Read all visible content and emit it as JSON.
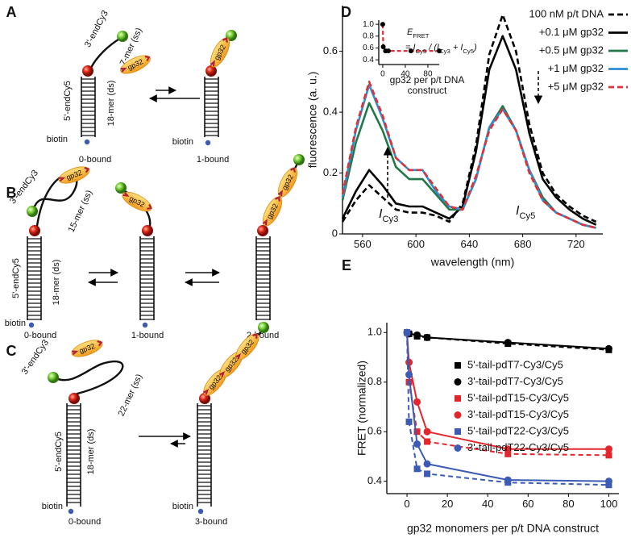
{
  "diagram_a": {
    "letter": "A",
    "cy3": "3'-endCy3",
    "ss": "7-mer (ss)",
    "cy5": "5'-endCy5",
    "ds": "18-mer (ds)",
    "biotin": [
      "biotin",
      "biotin"
    ],
    "states": [
      "0-bound",
      "1-bound"
    ],
    "gp32": [
      "gp32",
      "gp32"
    ]
  },
  "diagram_b": {
    "letter": "B",
    "cy3": "3'-endCy3",
    "ss": "15-mer (ss)",
    "cy5": "5'-endCy5",
    "ds": "18-mer (ds)",
    "biotin": [
      "biotin"
    ],
    "states": [
      "0-bound",
      "1-bound",
      "2-bound"
    ],
    "gp32": [
      "gp32",
      "gp32",
      "gp32",
      "gp32"
    ]
  },
  "diagram_c": {
    "letter": "C",
    "cy3": "3'-endCy3",
    "ss": "22-mer (ss)",
    "cy5": "5'-endCy5",
    "ds": "18-mer (ds)",
    "biotin": [
      "biotin",
      "biotin"
    ],
    "states": [
      "0-bound",
      "3-bound"
    ],
    "gp32": [
      "gp32",
      "gp32",
      "gp32",
      "gp32"
    ]
  },
  "chart_data": [
    {
      "type": "line",
      "panel": "D",
      "xlabel": "wavelength (nm)",
      "ylabel": "fluorescence (a. u.)",
      "annotations": [
        [
          "I",
          "Cy3"
        ],
        [
          "I",
          "Cy5"
        ]
      ],
      "x": [
        545,
        555,
        565,
        575,
        585,
        595,
        605,
        615,
        625,
        635,
        645,
        655,
        665,
        675,
        685,
        695,
        705,
        715,
        725,
        735
      ],
      "xlim": [
        545,
        740
      ],
      "xticks": [
        560,
        600,
        640,
        680,
        720
      ],
      "ylim": [
        0,
        0.75
      ],
      "yticks": [
        0,
        0.2,
        0.4,
        0.6
      ],
      "series": [
        {
          "name": "100 nM p/t DNA",
          "color": "#000000",
          "dashed": true,
          "values": [
            0.04,
            0.11,
            0.16,
            0.12,
            0.08,
            0.07,
            0.07,
            0.06,
            0.04,
            0.1,
            0.29,
            0.59,
            0.72,
            0.6,
            0.36,
            0.2,
            0.13,
            0.09,
            0.06,
            0.04
          ]
        },
        {
          "name": "+0.1 μM gp32",
          "color": "#000000",
          "dashed": false,
          "values": [
            0.05,
            0.14,
            0.21,
            0.16,
            0.1,
            0.09,
            0.09,
            0.07,
            0.05,
            0.09,
            0.27,
            0.54,
            0.65,
            0.54,
            0.33,
            0.18,
            0.12,
            0.08,
            0.05,
            0.03
          ]
        },
        {
          "name": "+0.5 μM gp32",
          "color": "#23784a",
          "dashed": false,
          "values": [
            0.11,
            0.3,
            0.43,
            0.34,
            0.22,
            0.18,
            0.18,
            0.13,
            0.08,
            0.08,
            0.18,
            0.35,
            0.42,
            0.34,
            0.21,
            0.12,
            0.07,
            0.05,
            0.03,
            0.02
          ]
        },
        {
          "name": "+1 μM gp32",
          "color": "#2b8fd6",
          "dashed": false,
          "values": [
            0.12,
            0.34,
            0.49,
            0.38,
            0.25,
            0.21,
            0.21,
            0.14,
            0.09,
            0.08,
            0.18,
            0.35,
            0.41,
            0.34,
            0.21,
            0.11,
            0.07,
            0.05,
            0.03,
            0.02
          ]
        },
        {
          "name": "+5 μM gp32",
          "color": "#e0303a",
          "dashed": true,
          "values": [
            0.13,
            0.35,
            0.5,
            0.39,
            0.25,
            0.21,
            0.21,
            0.15,
            0.09,
            0.08,
            0.19,
            0.34,
            0.41,
            0.34,
            0.2,
            0.11,
            0.07,
            0.05,
            0.03,
            0.02
          ]
        }
      ]
    },
    {
      "type": "scatter",
      "xlabel": [
        "gp32 per p/t DNA",
        "construct"
      ],
      "annotation": [
        "E",
        "FRET"
      ],
      "formula": [
        "= I",
        "Cy5",
        " / (I",
        "Cy3",
        " + I",
        "Cy5",
        ")"
      ],
      "xlim": [
        -7,
        100
      ],
      "xticks": [
        0,
        40,
        80
      ],
      "ylim": [
        0.32,
        1.07
      ],
      "yticks": [
        0.4,
        0.6,
        0.8,
        {
          "value": 1,
          "label": "1.0"
        }
      ],
      "x": [
        0,
        1,
        5,
        10,
        50,
        100
      ],
      "values": [
        1.0,
        0.62,
        0.55,
        0.55,
        0.55,
        0.55
      ],
      "color": "#000000",
      "fit_color": "#e0303a"
    },
    {
      "type": "scatter",
      "panel": "E",
      "xlabel": "gp32 monomers per p/t DNA construct",
      "ylabel": "FRET (normalized)",
      "xlim": [
        -10,
        105
      ],
      "xticks": [
        0,
        20,
        40,
        60,
        80,
        100
      ],
      "ylim": [
        0.35,
        1.04
      ],
      "yticks": [
        0.4,
        0.6,
        0.8,
        {
          "value": 1,
          "label": "1.0"
        }
      ],
      "x": [
        0,
        1,
        5,
        10,
        50,
        100
      ],
      "series": [
        {
          "name": "5'-tail-pdT7-Cy3/Cy5",
          "color": "#000000",
          "marker": "square",
          "dashed": true,
          "values": [
            1.0,
            0.995,
            0.985,
            0.98,
            0.955,
            0.93
          ]
        },
        {
          "name": "3'-tail-pdT7-Cy3/Cy5",
          "color": "#000000",
          "marker": "circle",
          "dashed": false,
          "values": [
            1.0,
            0.995,
            0.99,
            0.98,
            0.96,
            0.935
          ]
        },
        {
          "name": "5'-tail-pdT15-Cy3/Cy5",
          "color": "#e3262c",
          "marker": "square",
          "dashed": true,
          "values": [
            1.0,
            0.8,
            0.6,
            0.56,
            0.51,
            0.505
          ]
        },
        {
          "name": "3'-tail-pdT15-Cy3/Cy5",
          "color": "#e3262c",
          "marker": "circle",
          "dashed": false,
          "values": [
            1.0,
            0.88,
            0.72,
            0.6,
            0.53,
            0.53
          ]
        },
        {
          "name": "5'-tail-pdT22-Cy3/Cy5",
          "color": "#3b5bb5",
          "marker": "square",
          "dashed": true,
          "values": [
            1.0,
            0.64,
            0.45,
            0.43,
            0.395,
            0.385
          ]
        },
        {
          "name": "3'-tail-pdT22-Cy3/Cy5",
          "color": "#3b5bb5",
          "marker": "circle",
          "dashed": false,
          "values": [
            1.0,
            0.83,
            0.55,
            0.47,
            0.405,
            0.4
          ]
        }
      ]
    }
  ]
}
